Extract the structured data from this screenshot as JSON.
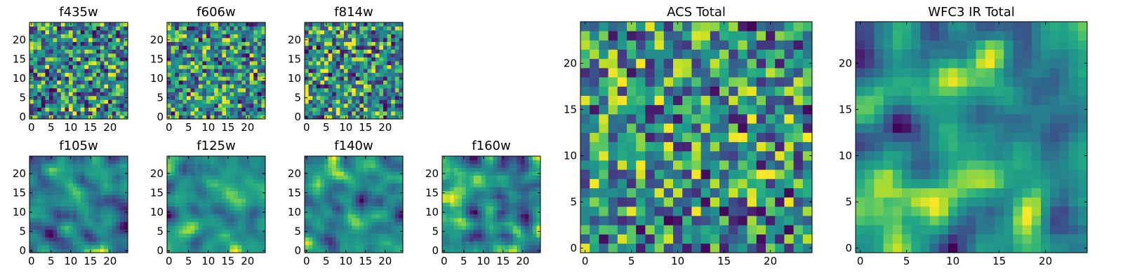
{
  "figure": {
    "background": "#ffffff"
  },
  "chart_data": [
    {
      "type": "heatmap",
      "title": "f435w",
      "grid_size": 25,
      "texture": "noise",
      "seed": 435,
      "xticks": [
        0,
        5,
        10,
        15,
        20
      ],
      "yticks": [
        0,
        5,
        10,
        15,
        20
      ],
      "xlim": [
        0,
        24
      ],
      "ylim": [
        0,
        24
      ],
      "colormap": "viridis"
    },
    {
      "type": "heatmap",
      "title": "f606w",
      "grid_size": 25,
      "texture": "noise",
      "seed": 606,
      "xticks": [
        0,
        5,
        10,
        15,
        20
      ],
      "yticks": [
        0,
        5,
        10,
        15,
        20
      ],
      "xlim": [
        0,
        24
      ],
      "ylim": [
        0,
        24
      ],
      "colormap": "viridis"
    },
    {
      "type": "heatmap",
      "title": "f814w",
      "grid_size": 25,
      "texture": "noise",
      "seed": 814,
      "xticks": [
        0,
        5,
        10,
        15,
        20
      ],
      "yticks": [
        0,
        5,
        10,
        15,
        20
      ],
      "xlim": [
        0,
        24
      ],
      "ylim": [
        0,
        24
      ],
      "colormap": "viridis"
    },
    {
      "type": "heatmap",
      "title": "f105w",
      "grid_size": 25,
      "texture": "smooth",
      "seed": 105,
      "xticks": [
        0,
        5,
        10,
        15,
        20
      ],
      "yticks": [
        0,
        5,
        10,
        15,
        20
      ],
      "xlim": [
        0,
        24
      ],
      "ylim": [
        0,
        24
      ],
      "colormap": "viridis"
    },
    {
      "type": "heatmap",
      "title": "f125w",
      "grid_size": 25,
      "texture": "smooth",
      "seed": 125,
      "xticks": [
        0,
        5,
        10,
        15,
        20
      ],
      "yticks": [
        0,
        5,
        10,
        15,
        20
      ],
      "xlim": [
        0,
        24
      ],
      "ylim": [
        0,
        24
      ],
      "colormap": "viridis"
    },
    {
      "type": "heatmap",
      "title": "f140w",
      "grid_size": 25,
      "texture": "smooth",
      "seed": 140,
      "xticks": [
        0,
        5,
        10,
        15,
        20
      ],
      "yticks": [
        0,
        5,
        10,
        15,
        20
      ],
      "xlim": [
        0,
        24
      ],
      "ylim": [
        0,
        24
      ],
      "colormap": "viridis"
    },
    {
      "type": "heatmap",
      "title": "f160w",
      "grid_size": 25,
      "texture": "smooth",
      "seed": 160,
      "xticks": [
        0,
        5,
        10,
        15,
        20
      ],
      "yticks": [
        0,
        5,
        10,
        15,
        20
      ],
      "xlim": [
        0,
        24
      ],
      "ylim": [
        0,
        24
      ],
      "colormap": "viridis"
    },
    {
      "type": "heatmap",
      "title": "ACS Total",
      "grid_size": 25,
      "texture": "noise",
      "seed": 999,
      "xticks": [
        0,
        5,
        10,
        15,
        20
      ],
      "yticks": [
        0,
        5,
        10,
        15,
        20
      ],
      "xlim": [
        0,
        24
      ],
      "ylim": [
        0,
        24
      ],
      "colormap": "viridis"
    },
    {
      "type": "heatmap",
      "title": "WFC3 IR Total",
      "grid_size": 25,
      "texture": "smooth",
      "seed": 321,
      "xticks": [
        0,
        5,
        10,
        15,
        20
      ],
      "yticks": [
        0,
        5,
        10,
        15,
        20
      ],
      "xlim": [
        0,
        24
      ],
      "ylim": [
        0,
        24
      ],
      "colormap": "viridis"
    }
  ]
}
